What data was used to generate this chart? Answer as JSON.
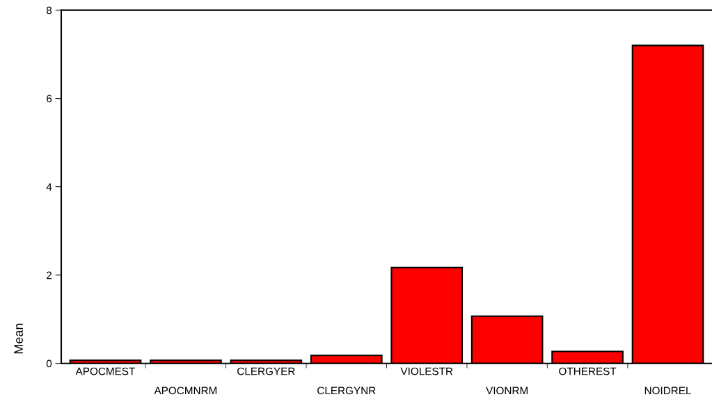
{
  "chart_data": {
    "type": "bar",
    "ylabel": "Mean",
    "categories": [
      "APOCMEST",
      "APOCMNRM",
      "CLERGYER",
      "CLERGYNR",
      "VIOLESTR",
      "VIONRM",
      "OTHEREST",
      "NOIDREL"
    ],
    "values": [
      0.07,
      0.07,
      0.07,
      0.18,
      2.17,
      1.07,
      0.27,
      7.2
    ],
    "color": "#ff0000",
    "ylim": [
      0,
      8
    ],
    "yticks": [
      0,
      2,
      4,
      6,
      8
    ],
    "grid": false,
    "legend": false
  }
}
